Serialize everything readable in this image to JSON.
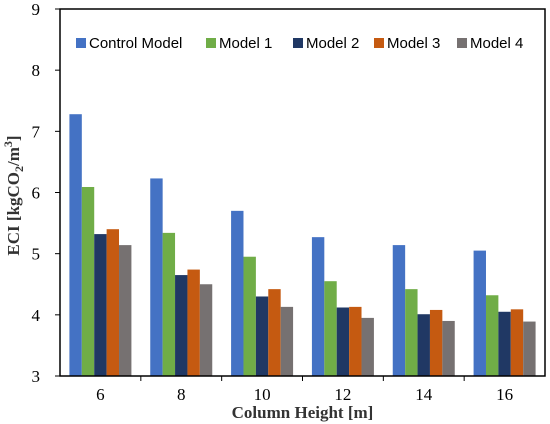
{
  "chart_data": {
    "type": "bar",
    "xlabel": "Column Height [m]",
    "ylabel": {
      "main": "ECI [kgCO",
      "sub": "2",
      "mid": "/m",
      "sup": "3",
      "end": "]"
    },
    "categories": [
      "6",
      "8",
      "10",
      "12",
      "14",
      "16"
    ],
    "ylim": [
      3,
      9
    ],
    "yticks": [
      "3",
      "4",
      "5",
      "6",
      "7",
      "8",
      "9"
    ],
    "grid": false,
    "legend_position": "top",
    "series": [
      {
        "name": "Control Model",
        "color": "#4472C4",
        "values": [
          7.28,
          6.23,
          5.7,
          5.27,
          5.14,
          5.05
        ]
      },
      {
        "name": "Model 1",
        "color": "#70AD47",
        "values": [
          6.09,
          5.34,
          4.95,
          4.55,
          4.42,
          4.32
        ]
      },
      {
        "name": "Model 2",
        "color": "#203864",
        "values": [
          5.32,
          4.65,
          4.3,
          4.12,
          4.01,
          4.05
        ]
      },
      {
        "name": "Model 3",
        "color": "#C55A11",
        "values": [
          5.4,
          4.74,
          4.42,
          4.13,
          4.08,
          4.09
        ]
      },
      {
        "name": "Model 4",
        "color": "#767171",
        "values": [
          5.14,
          4.5,
          4.13,
          3.95,
          3.9,
          3.89
        ]
      }
    ]
  }
}
